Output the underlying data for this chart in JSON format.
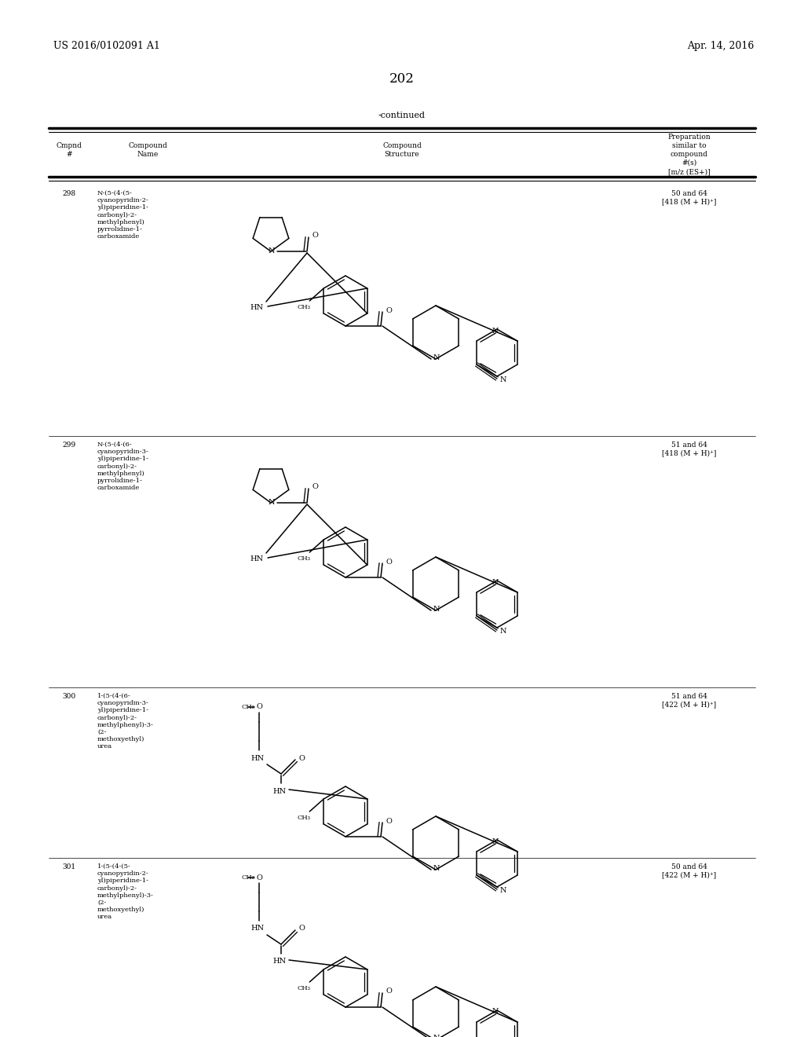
{
  "background_color": "#ffffff",
  "page_number": "202",
  "top_left_text": "US 2016/0102091 A1",
  "top_right_text": "Apr. 14, 2016",
  "continued_text": "-continued",
  "compounds": [
    {
      "id": "298",
      "name": "N-(5-(4-(5-\ncyanopyridin-2-\nyl)piperidine-1-\ncarbonyl)-2-\nmethylphenyl)\npyrrolidine-1-\ncarboxamide",
      "prep": "50 and 64\n[418 (M + H)⁺]"
    },
    {
      "id": "299",
      "name": "N-(5-(4-(6-\ncyanopyridin-3-\nyl)piperidine-1-\ncarbonyl)-2-\nmethylphenyl)\npyrrolidine-1-\ncarboxamide",
      "prep": "51 and 64\n[418 (M + H)⁺]"
    },
    {
      "id": "300",
      "name": "1-(5-(4-(6-\ncyanopyridin-3-\nyl)piperidine-1-\ncarbonyl)-2-\nmethylphenyl)-3-\n(2-\nmethoxyethyl)\nurea",
      "prep": "51 and 64\n[422 (M + H)⁺]"
    },
    {
      "id": "301",
      "name": "1-(5-(4-(5-\ncyanopyridin-2-\nyl)piperidine-1-\ncarbonyl)-2-\nmethylphenyl)-3-\n(2-\nmethoxyethyl)\nurea",
      "prep": "50 and 64\n[422 (M + H)⁺]"
    }
  ]
}
